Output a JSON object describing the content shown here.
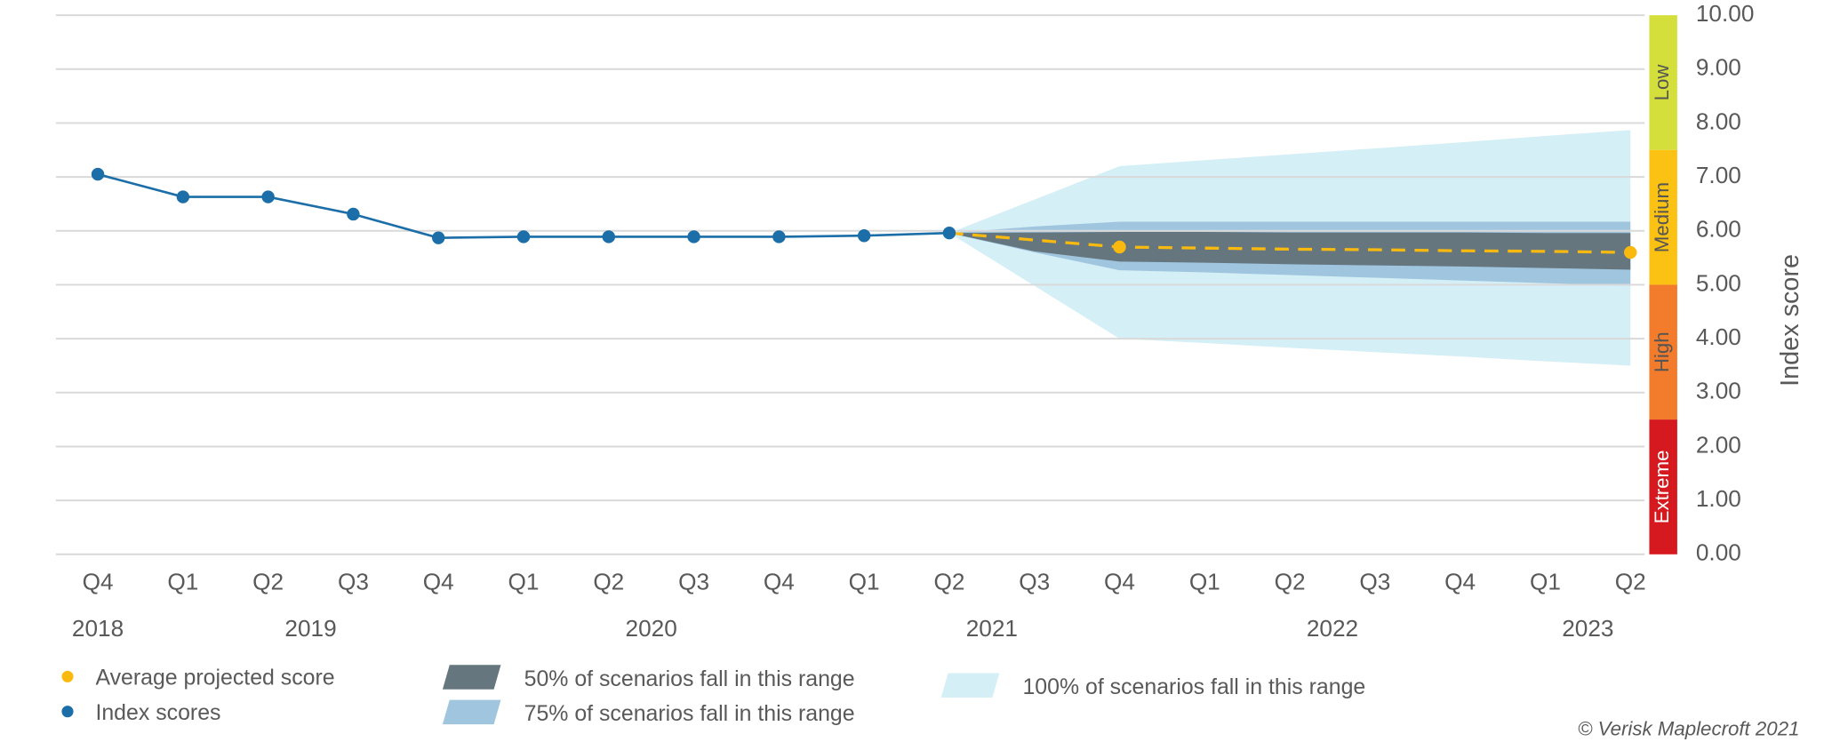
{
  "chart_data": {
    "type": "line",
    "categories": [
      "Q4",
      "Q1",
      "Q2",
      "Q3",
      "Q4",
      "Q1",
      "Q2",
      "Q3",
      "Q4",
      "Q1",
      "Q2",
      "Q3",
      "Q4",
      "Q1",
      "Q2",
      "Q3",
      "Q4",
      "Q1",
      "Q2"
    ],
    "years": [
      "2018",
      "2019",
      "2020",
      "2021",
      "2022",
      "2023"
    ],
    "series": [
      {
        "name": "Average projected score",
        "color": "#f9b90f",
        "dashed": true,
        "values": [
          null,
          null,
          null,
          null,
          null,
          null,
          null,
          null,
          null,
          null,
          5.96,
          5.83,
          5.7,
          5.68,
          5.66,
          5.65,
          5.63,
          5.62,
          5.6
        ]
      },
      {
        "name": "Index scores",
        "color": "#1b6ea8",
        "values": [
          7.05,
          6.63,
          6.63,
          6.31,
          5.87,
          5.89,
          5.89,
          5.89,
          5.89,
          5.91,
          5.96,
          null,
          null,
          null,
          null,
          null,
          null,
          null,
          null
        ]
      }
    ],
    "bands": [
      {
        "name": "50% of scenarios fall in this range",
        "color": "#66767f",
        "low": [
          null,
          null,
          null,
          null,
          null,
          null,
          null,
          null,
          null,
          null,
          5.96,
          5.62,
          5.43,
          5.41,
          5.38,
          5.36,
          5.34,
          5.31,
          5.28
        ],
        "high": [
          null,
          null,
          null,
          null,
          null,
          null,
          null,
          null,
          null,
          null,
          5.96,
          5.97,
          5.98,
          5.98,
          5.97,
          5.97,
          5.97,
          5.96,
          5.96
        ]
      },
      {
        "name": "75% of scenarios fall in this range",
        "color": "#9fc5df",
        "low": [
          null,
          null,
          null,
          null,
          null,
          null,
          null,
          null,
          null,
          null,
          5.96,
          5.6,
          5.27,
          5.23,
          5.18,
          5.13,
          5.08,
          5.03,
          4.98
        ],
        "high": [
          null,
          null,
          null,
          null,
          null,
          null,
          null,
          null,
          null,
          null,
          5.96,
          6.08,
          6.17,
          6.17,
          6.17,
          6.17,
          6.17,
          6.17,
          6.17
        ]
      },
      {
        "name": "100% of scenarios fall in this range",
        "color": "#d4eff6",
        "low": [
          null,
          null,
          null,
          null,
          null,
          null,
          null,
          null,
          null,
          null,
          5.96,
          4.98,
          4.0,
          3.92,
          3.83,
          3.75,
          3.67,
          3.58,
          3.5
        ],
        "high": [
          null,
          null,
          null,
          null,
          null,
          null,
          null,
          null,
          null,
          null,
          5.96,
          6.58,
          7.2,
          7.31,
          7.42,
          7.53,
          7.64,
          7.76,
          7.87
        ]
      }
    ],
    "ylim": [
      0,
      10
    ],
    "yticks": [
      {
        "value": 0,
        "label": "0.00"
      },
      {
        "value": 1,
        "label": "1.00"
      },
      {
        "value": 2,
        "label": "2.00"
      },
      {
        "value": 3,
        "label": "3.00"
      },
      {
        "value": 4,
        "label": "4.00"
      },
      {
        "value": 5,
        "label": "5.00"
      },
      {
        "value": 6,
        "label": "6.00"
      },
      {
        "value": 7,
        "label": "7.00"
      },
      {
        "value": 8,
        "label": "8.00"
      },
      {
        "value": 9,
        "label": "9.00"
      },
      {
        "value": 10,
        "label": "10.00"
      }
    ],
    "y_label": "Index score",
    "grid": true,
    "risk_levels": [
      {
        "label": "Low",
        "from": 7.5,
        "to": 10,
        "color": "#d5df3c"
      },
      {
        "label": "Medium",
        "from": 5,
        "to": 7.5,
        "color": "#fbc213"
      },
      {
        "label": "High",
        "from": 2.5,
        "to": 5,
        "color": "#f27b2c"
      },
      {
        "label": "Extreme",
        "from": 0,
        "to": 2.5,
        "color": "#d6191f"
      }
    ],
    "source": "© Verisk Maplecroft 2021"
  }
}
